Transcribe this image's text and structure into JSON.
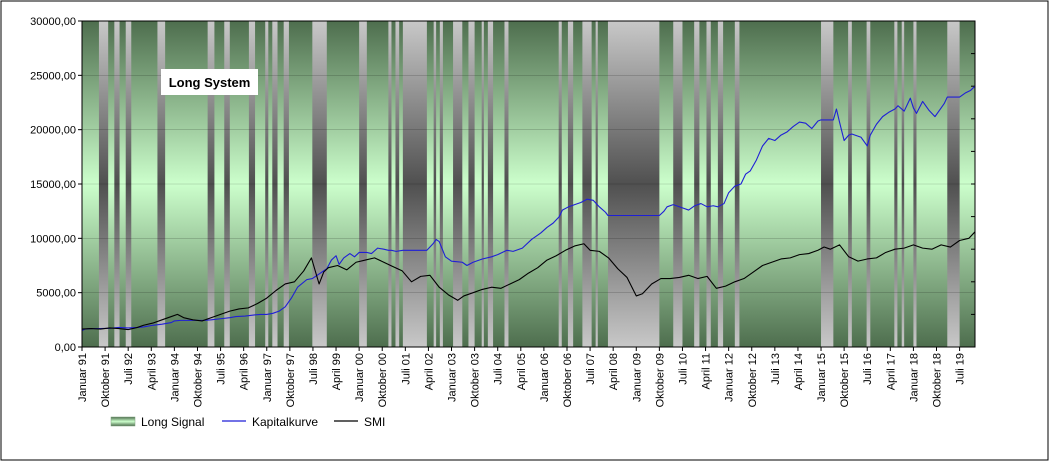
{
  "chart_data": {
    "type": "line",
    "title": "Long System",
    "ylim": [
      0,
      30000
    ],
    "yticks": [
      "0,00",
      "5000,00",
      "10000,00",
      "15000,00",
      "20000,00",
      "25000,00",
      "30000,00"
    ],
    "xlim": [
      1991.0,
      2020.0
    ],
    "xticks": [
      "Januar 91",
      "Oktober 91",
      "Juli 92",
      "April 93",
      "Januar 94",
      "Oktober 94",
      "Juli 95",
      "April 96",
      "Januar 97",
      "Oktober 97",
      "Juli 98",
      "April 99",
      "Januar 00",
      "Oktober 00",
      "Juli 01",
      "April 02",
      "Januar 03",
      "Oktober 03",
      "Juli 04",
      "April 05",
      "Januar 06",
      "Oktober 06",
      "Juli 07",
      "April 08",
      "Januar 09",
      "Oktober 09",
      "Juli 10",
      "April 11",
      "Januar 12",
      "Oktober 12",
      "Juli 13",
      "April 14",
      "Januar 15",
      "Oktober 15",
      "Juli 16",
      "April 17",
      "Januar 18",
      "Oktober 18",
      "Juli 19"
    ],
    "legend": {
      "position": "bottom-left",
      "entries": [
        "Long Signal",
        "Kapitalkurve",
        "SMI"
      ]
    },
    "colors": {
      "kapitalkurve": "#1f1fd6",
      "smi": "#000000"
    },
    "signal_off_periods": [
      [
        1991.55,
        1991.85
      ],
      [
        1992.05,
        1992.22
      ],
      [
        1992.42,
        1992.6
      ],
      [
        1993.45,
        1993.7
      ],
      [
        1995.08,
        1995.3
      ],
      [
        1995.62,
        1995.8
      ],
      [
        1996.42,
        1996.62
      ],
      [
        1996.95,
        1997.05
      ],
      [
        1997.18,
        1997.35
      ],
      [
        1997.55,
        1997.72
      ],
      [
        1998.48,
        1998.95
      ],
      [
        2000.0,
        2000.25
      ],
      [
        2000.95,
        2001.05
      ],
      [
        2001.18,
        2001.3
      ],
      [
        2001.42,
        2002.2
      ],
      [
        2002.42,
        2002.5
      ],
      [
        2002.62,
        2002.72
      ],
      [
        2003.05,
        2003.35
      ],
      [
        2003.55,
        2003.75
      ],
      [
        2003.98,
        2004.05
      ],
      [
        2004.18,
        2004.35
      ],
      [
        2004.72,
        2004.85
      ],
      [
        2006.48,
        2006.58
      ],
      [
        2006.78,
        2006.95
      ],
      [
        2007.25,
        2007.55
      ],
      [
        2007.68,
        2007.75
      ],
      [
        2008.08,
        2009.75
      ],
      [
        2010.2,
        2010.5
      ],
      [
        2010.88,
        2011.05
      ],
      [
        2011.28,
        2011.42
      ],
      [
        2011.65,
        2011.82
      ],
      [
        2012.2,
        2012.35
      ],
      [
        2015.0,
        2015.4
      ],
      [
        2015.88,
        2016.0
      ],
      [
        2016.48,
        2016.6
      ],
      [
        2017.38,
        2017.48
      ],
      [
        2017.62,
        2017.7
      ],
      [
        2018.0,
        2018.1
      ],
      [
        2019.1,
        2019.5
      ]
    ],
    "series": [
      {
        "name": "Kapitalkurve",
        "x": [
          1991.0,
          1991.1,
          1991.3,
          1991.6,
          1991.9,
          1992.2,
          1992.5,
          1992.8,
          1993.0,
          1993.3,
          1993.6,
          1993.9,
          1994.0,
          1994.2,
          1994.5,
          1994.8,
          1995.0,
          1995.2,
          1995.5,
          1995.8,
          1996.0,
          1996.3,
          1996.6,
          1996.8,
          1997.0,
          1997.2,
          1997.4,
          1997.6,
          1997.8,
          1998.0,
          1998.3,
          1998.48,
          1998.95,
          1999.1,
          1999.25,
          1999.35,
          1999.5,
          1999.7,
          1999.85,
          2000.0,
          2000.25,
          2000.4,
          2000.6,
          2000.8,
          2000.95,
          2001.05,
          2001.2,
          2001.42,
          2002.2,
          2002.4,
          2002.5,
          2002.6,
          2002.8,
          2003.0,
          2003.35,
          2003.5,
          2003.7,
          2004.0,
          2004.3,
          2004.5,
          2004.8,
          2005.0,
          2005.3,
          2005.6,
          2005.9,
          2006.1,
          2006.3,
          2006.5,
          2006.6,
          2006.8,
          2007.0,
          2007.2,
          2007.4,
          2007.6,
          2007.8,
          2008.0,
          2008.08,
          2009.75,
          2009.9,
          2010.0,
          2010.2,
          2010.5,
          2010.7,
          2010.9,
          2011.1,
          2011.3,
          2011.5,
          2011.65,
          2011.85,
          2012.0,
          2012.2,
          2012.4,
          2012.55,
          2012.7,
          2012.9,
          2013.1,
          2013.3,
          2013.5,
          2013.7,
          2013.9,
          2014.1,
          2014.3,
          2014.5,
          2014.7,
          2014.9,
          2015.0,
          2015.4,
          2015.5,
          2015.6,
          2015.75,
          2015.9,
          2016.0,
          2016.3,
          2016.5,
          2016.6,
          2016.8,
          2017.0,
          2017.2,
          2017.4,
          2017.5,
          2017.7,
          2017.9,
          2018.0,
          2018.1,
          2018.3,
          2018.5,
          2018.7,
          2018.9,
          2019.0,
          2019.1,
          2019.5,
          2019.7,
          2019.85,
          2020.0
        ],
        "values": [
          1500,
          1650,
          1700,
          1700,
          1720,
          1800,
          1750,
          1800,
          1850,
          2000,
          2100,
          2250,
          2400,
          2450,
          2450,
          2450,
          2450,
          2500,
          2600,
          2700,
          2800,
          2850,
          2950,
          3000,
          3000,
          3100,
          3300,
          3700,
          4500,
          5500,
          6200,
          6300,
          7200,
          8000,
          8400,
          7600,
          8200,
          8600,
          8300,
          8700,
          8700,
          8600,
          9100,
          9000,
          8900,
          8900,
          8800,
          8900,
          8900,
          9500,
          9900,
          9700,
          8300,
          7900,
          7800,
          7500,
          7800,
          8100,
          8300,
          8500,
          8900,
          8800,
          9100,
          9900,
          10500,
          11000,
          11400,
          12000,
          12600,
          12900,
          13100,
          13300,
          13600,
          13500,
          12900,
          12400,
          12100,
          12100,
          12500,
          12900,
          13100,
          12800,
          12600,
          13000,
          13200,
          12900,
          13000,
          12900,
          13200,
          14200,
          14800,
          15000,
          15900,
          16200,
          17200,
          18500,
          19200,
          19000,
          19500,
          19800,
          20300,
          20700,
          20600,
          20100,
          20800,
          20900,
          20900,
          21900,
          20700,
          19000,
          19500,
          19600,
          19300,
          18500,
          19500,
          20500,
          21200,
          21600,
          21900,
          22200,
          21700,
          22900,
          22000,
          21500,
          22600,
          21800,
          21200,
          22000,
          22400,
          23000,
          23000,
          23400,
          23600,
          24000
        ]
      },
      {
        "name": "SMI",
        "x": [
          1991.0,
          1991.3,
          1991.6,
          1991.9,
          1992.2,
          1992.5,
          1992.8,
          1993.0,
          1993.3,
          1993.6,
          1993.9,
          1994.1,
          1994.3,
          1994.6,
          1994.9,
          1995.2,
          1995.5,
          1995.8,
          1996.1,
          1996.4,
          1996.7,
          1997.0,
          1997.3,
          1997.6,
          1997.9,
          1998.2,
          1998.45,
          1998.7,
          1998.85,
          1999.0,
          1999.3,
          1999.6,
          1999.9,
          2000.2,
          2000.5,
          2000.8,
          2001.1,
          2001.4,
          2001.7,
          2002.0,
          2002.3,
          2002.6,
          2002.9,
          2003.2,
          2003.4,
          2003.7,
          2004.0,
          2004.3,
          2004.6,
          2004.9,
          2005.2,
          2005.5,
          2005.8,
          2006.1,
          2006.4,
          2006.7,
          2007.0,
          2007.3,
          2007.5,
          2007.8,
          2008.1,
          2008.4,
          2008.7,
          2009.0,
          2009.2,
          2009.5,
          2009.8,
          2010.1,
          2010.4,
          2010.7,
          2011.0,
          2011.3,
          2011.6,
          2011.9,
          2012.2,
          2012.5,
          2012.8,
          2013.1,
          2013.4,
          2013.7,
          2014.0,
          2014.3,
          2014.6,
          2014.9,
          2015.1,
          2015.3,
          2015.6,
          2015.9,
          2016.2,
          2016.5,
          2016.8,
          2017.1,
          2017.4,
          2017.7,
          2018.0,
          2018.3,
          2018.6,
          2018.9,
          2019.2,
          2019.5,
          2019.8,
          2020.0
        ],
        "values": [
          1650,
          1700,
          1650,
          1750,
          1700,
          1600,
          1800,
          2000,
          2200,
          2500,
          2800,
          3000,
          2700,
          2500,
          2400,
          2700,
          3000,
          3300,
          3500,
          3600,
          4000,
          4500,
          5200,
          5800,
          6000,
          7000,
          8200,
          5800,
          6900,
          7300,
          7500,
          7100,
          7800,
          8000,
          8200,
          7800,
          7400,
          7000,
          6000,
          6500,
          6600,
          5500,
          4800,
          4300,
          4700,
          5000,
          5300,
          5500,
          5400,
          5800,
          6200,
          6800,
          7300,
          8000,
          8400,
          8900,
          9300,
          9500,
          8900,
          8800,
          8200,
          7200,
          6400,
          4700,
          4900,
          5800,
          6300,
          6300,
          6400,
          6600,
          6300,
          6500,
          5400,
          5600,
          6000,
          6300,
          6900,
          7500,
          7800,
          8100,
          8200,
          8500,
          8600,
          8900,
          9200,
          9000,
          9400,
          8300,
          7900,
          8100,
          8200,
          8700,
          9000,
          9100,
          9400,
          9100,
          9000,
          9400,
          9200,
          9800,
          10000,
          10600
        ]
      }
    ]
  }
}
